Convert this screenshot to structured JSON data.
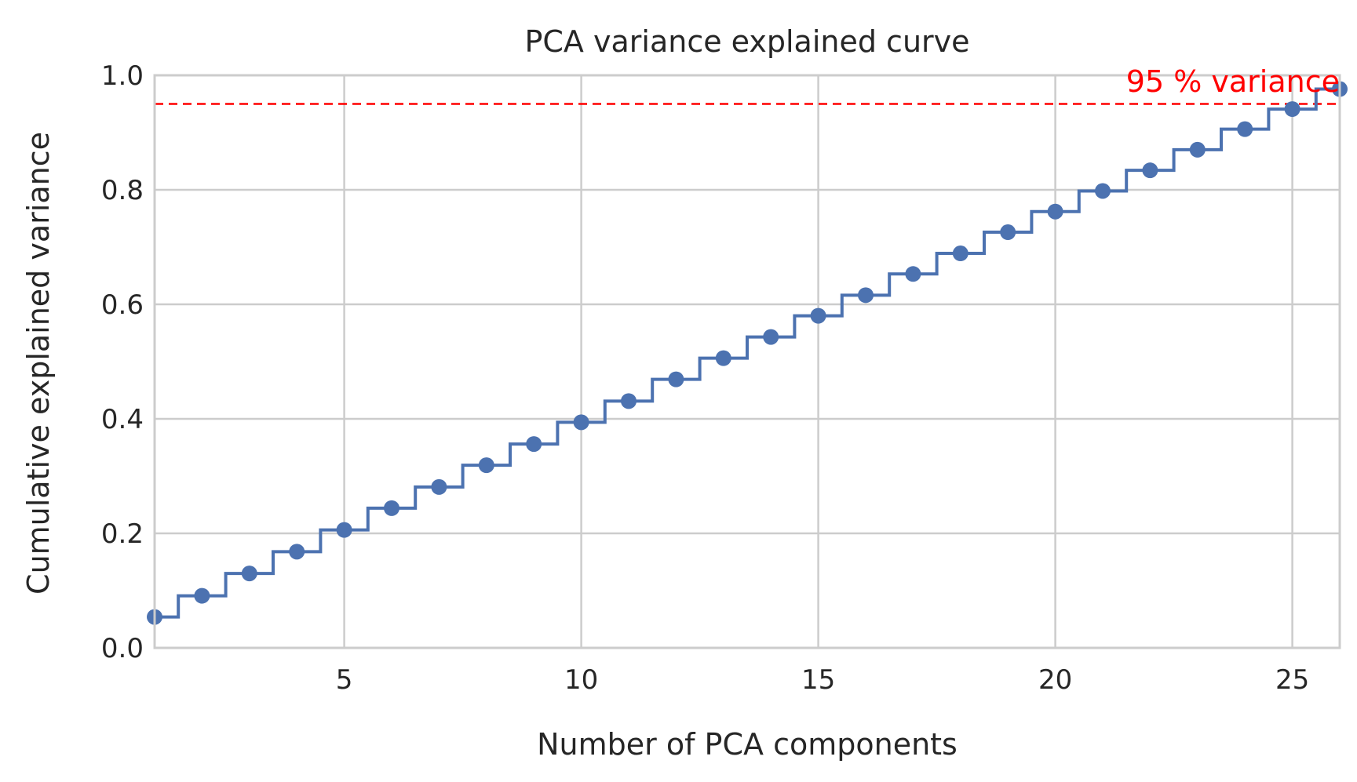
{
  "chart_data": {
    "type": "line",
    "title": "PCA variance explained curve",
    "xlabel": "Number of PCA components",
    "ylabel": "Cumulative explained variance",
    "xlim": [
      1,
      26
    ],
    "ylim": [
      0,
      1.0
    ],
    "xticks": [
      5,
      10,
      15,
      20,
      25
    ],
    "xtick_labels": [
      "5",
      "10",
      "15",
      "20",
      "25"
    ],
    "yticks": [
      0.0,
      0.2,
      0.4,
      0.6,
      0.8,
      1.0
    ],
    "ytick_labels": [
      "0.0",
      "0.2",
      "0.4",
      "0.6",
      "0.8",
      "1.0"
    ],
    "grid": true,
    "step_where": "mid",
    "series": [
      {
        "color": "#4c72b0",
        "marker": "circle",
        "x": [
          1,
          2,
          3,
          4,
          5,
          6,
          7,
          8,
          9,
          10,
          11,
          12,
          13,
          14,
          15,
          16,
          17,
          18,
          19,
          20,
          21,
          22,
          23,
          24,
          25,
          26
        ],
        "y": [
          0.054,
          0.091,
          0.13,
          0.168,
          0.206,
          0.244,
          0.281,
          0.319,
          0.356,
          0.394,
          0.431,
          0.469,
          0.506,
          0.543,
          0.58,
          0.616,
          0.653,
          0.689,
          0.726,
          0.762,
          0.798,
          0.834,
          0.87,
          0.906,
          0.941,
          0.976
        ]
      }
    ],
    "threshold": {
      "y": 0.95,
      "color": "#ff0000",
      "linestyle": "dashed",
      "label": "95 % variance",
      "label_position": "top-right"
    }
  }
}
